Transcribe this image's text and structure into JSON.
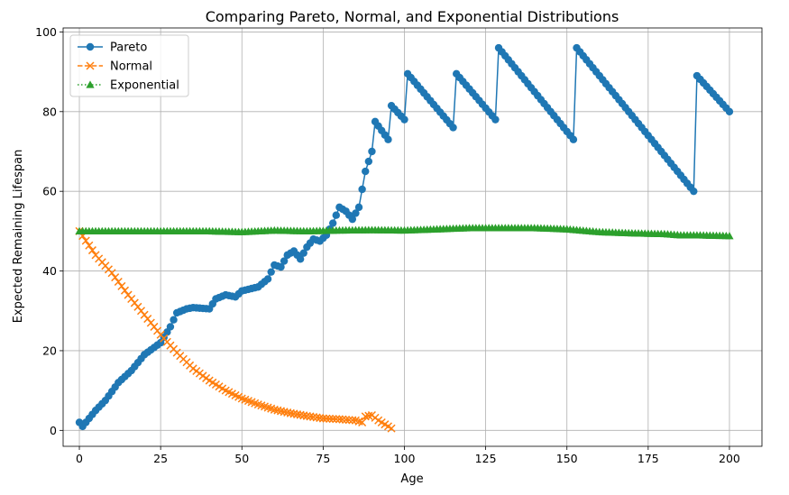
{
  "chart_data": {
    "type": "line",
    "title": "Comparing Pareto, Normal, and Exponential Distributions",
    "xlabel": "Age",
    "ylabel": "Expected Remaining Lifespan",
    "xlim": [
      -5,
      210
    ],
    "ylim": [
      -4,
      101
    ],
    "xticks": [
      0,
      25,
      50,
      75,
      100,
      125,
      150,
      175,
      200
    ],
    "yticks": [
      0,
      20,
      40,
      60,
      80,
      100
    ],
    "grid": true,
    "legend_position": "top-left",
    "series": [
      {
        "name": "Pareto",
        "color": "#1f77b4",
        "line_style": "solid",
        "marker": "circle",
        "keypoints": [
          [
            0,
            2
          ],
          [
            1,
            1
          ],
          [
            3,
            3
          ],
          [
            5,
            5
          ],
          [
            8,
            7.5
          ],
          [
            12,
            12
          ],
          [
            16,
            15
          ],
          [
            20,
            19
          ],
          [
            25,
            22
          ],
          [
            28,
            26
          ],
          [
            30,
            29.5
          ],
          [
            33,
            30.5
          ],
          [
            35,
            30.8
          ],
          [
            40,
            30.5
          ],
          [
            42,
            33
          ],
          [
            45,
            34
          ],
          [
            48,
            33.5
          ],
          [
            50,
            35
          ],
          [
            55,
            36
          ],
          [
            58,
            38
          ],
          [
            60,
            41.5
          ],
          [
            62,
            41
          ],
          [
            64,
            44
          ],
          [
            66,
            45
          ],
          [
            68,
            43
          ],
          [
            70,
            46
          ],
          [
            72,
            48
          ],
          [
            74,
            47.5
          ],
          [
            76,
            49
          ],
          [
            78,
            52
          ],
          [
            80,
            56
          ],
          [
            82,
            55
          ],
          [
            84,
            53
          ],
          [
            86,
            56
          ],
          [
            88,
            65
          ],
          [
            90,
            70
          ],
          [
            91,
            77.5
          ],
          [
            95,
            73
          ],
          [
            96,
            81.5
          ],
          [
            100,
            78
          ],
          [
            101,
            89.5
          ],
          [
            115,
            76
          ],
          [
            116,
            89.5
          ],
          [
            128,
            78
          ],
          [
            129,
            96
          ],
          [
            152,
            73
          ],
          [
            153,
            96
          ],
          [
            189,
            60
          ],
          [
            190,
            89
          ],
          [
            200,
            80
          ]
        ]
      },
      {
        "name": "Normal",
        "color": "#ff7f0e",
        "line_style": "dashed",
        "marker": "x",
        "points": [
          [
            0,
            50
          ],
          [
            5,
            44
          ],
          [
            10,
            39.5
          ],
          [
            15,
            34
          ],
          [
            20,
            29
          ],
          [
            25,
            24
          ],
          [
            30,
            19.5
          ],
          [
            35,
            15.5
          ],
          [
            40,
            12.5
          ],
          [
            45,
            10
          ],
          [
            50,
            8
          ],
          [
            55,
            6.5
          ],
          [
            60,
            5.2
          ],
          [
            65,
            4.3
          ],
          [
            70,
            3.6
          ],
          [
            75,
            3
          ],
          [
            80,
            2.8
          ],
          [
            85,
            2.5
          ],
          [
            87,
            2
          ],
          [
            88,
            3.5
          ],
          [
            90,
            3.8
          ],
          [
            92,
            2.5
          ],
          [
            94,
            1.5
          ],
          [
            96,
            0.5
          ]
        ]
      },
      {
        "name": "Exponential",
        "color": "#2ca02c",
        "line_style": "dotted",
        "marker": "triangle",
        "points": [
          [
            0,
            50
          ],
          [
            20,
            50
          ],
          [
            40,
            50
          ],
          [
            50,
            49.8
          ],
          [
            60,
            50.2
          ],
          [
            70,
            50
          ],
          [
            80,
            50.2
          ],
          [
            90,
            50.3
          ],
          [
            100,
            50.2
          ],
          [
            110,
            50.5
          ],
          [
            120,
            50.8
          ],
          [
            130,
            50.8
          ],
          [
            140,
            50.8
          ],
          [
            150,
            50.5
          ],
          [
            160,
            49.8
          ],
          [
            170,
            49.5
          ],
          [
            180,
            49.3
          ],
          [
            185,
            49
          ],
          [
            190,
            49
          ],
          [
            200,
            48.8
          ]
        ]
      }
    ]
  }
}
